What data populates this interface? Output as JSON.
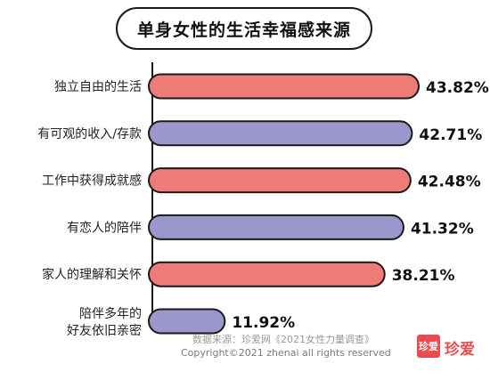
{
  "chart_data": {
    "type": "bar",
    "orientation": "horizontal",
    "title": "单身女性的生活幸福感来源",
    "categories": [
      "独立自由的生活",
      "有可观的收入/存款",
      "工作中获得成就感",
      "有恋人的陪伴",
      "家人的理解和关怀",
      "陪伴多年的\n好友依旧亲密"
    ],
    "values": [
      43.82,
      42.71,
      42.48,
      41.32,
      38.21,
      11.92
    ],
    "value_labels": [
      "43.82%",
      "42.71%",
      "42.48%",
      "41.32%",
      "38.21%",
      "11.92%"
    ],
    "bar_colors": [
      "#ee7b78",
      "#9b97cc",
      "#ee7b78",
      "#9b97cc",
      "#ee7b78",
      "#9b97cc"
    ],
    "xlim": [
      0,
      46
    ],
    "grid": false,
    "legend": "none"
  },
  "footer": {
    "source": "数据来源：珍爱网《2021女性力量调查》",
    "copyright": "Copyright©2021  zhenai  all rights reserved"
  },
  "logo": {
    "badge": "珍爱",
    "text": "珍爱"
  },
  "colors": {
    "coral": "#ee7b78",
    "lavender": "#9b97cc",
    "outline": "#1a1a1a",
    "brand": "#e84c50"
  }
}
